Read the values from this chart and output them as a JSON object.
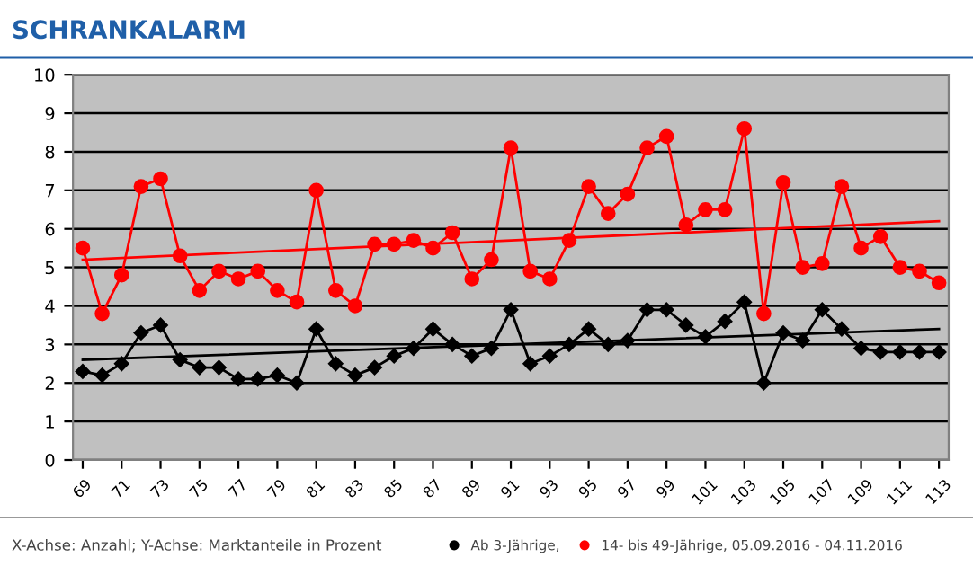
{
  "chart_data": {
    "type": "line",
    "title": "SCHRANKALARM",
    "x": [
      69,
      70,
      71,
      72,
      73,
      74,
      75,
      76,
      77,
      78,
      79,
      80,
      81,
      82,
      83,
      84,
      85,
      86,
      87,
      88,
      89,
      90,
      91,
      92,
      93,
      94,
      95,
      96,
      97,
      98,
      99,
      100,
      101,
      102,
      103,
      104,
      105,
      106,
      107,
      108,
      109,
      110,
      111,
      112,
      113
    ],
    "xlim": [
      68.5,
      113.5
    ],
    "xticks": [
      69,
      71,
      73,
      75,
      77,
      79,
      81,
      83,
      85,
      87,
      89,
      91,
      93,
      95,
      97,
      99,
      101,
      103,
      105,
      107,
      109,
      111,
      113
    ],
    "ylim": [
      0,
      10
    ],
    "yticks": [
      0,
      1,
      2,
      3,
      4,
      5,
      6,
      7,
      8,
      9,
      10
    ],
    "grid": "y",
    "legend": "bottom",
    "series": [
      {
        "name": "Ab 3-Jährige,",
        "color": "#000000",
        "marker": "diamond",
        "values": [
          2.3,
          2.2,
          2.5,
          3.3,
          3.5,
          2.6,
          2.4,
          2.4,
          2.1,
          2.1,
          2.2,
          2.0,
          3.4,
          2.5,
          2.2,
          2.4,
          2.7,
          2.9,
          3.4,
          3.0,
          2.7,
          2.9,
          3.9,
          2.5,
          2.7,
          3.0,
          3.4,
          3.0,
          3.1,
          3.9,
          3.9,
          3.5,
          3.2,
          3.6,
          4.1,
          2.0,
          3.3,
          3.1,
          3.9,
          3.4,
          2.9,
          2.8,
          2.8,
          2.8,
          2.8
        ]
      },
      {
        "name": "14- bis 49-Jährige, 05.09.2016 - 04.11.2016",
        "color": "#ff0000",
        "marker": "circle",
        "values": [
          5.5,
          3.8,
          4.8,
          7.1,
          7.3,
          5.3,
          4.4,
          4.9,
          4.7,
          4.9,
          4.4,
          4.1,
          7.0,
          4.4,
          4.0,
          5.6,
          5.6,
          5.7,
          5.5,
          5.9,
          4.7,
          5.2,
          8.1,
          4.9,
          4.7,
          5.7,
          7.1,
          6.4,
          6.9,
          8.1,
          8.4,
          6.1,
          6.5,
          6.5,
          8.6,
          3.8,
          7.2,
          5.0,
          5.1,
          7.1,
          5.5,
          5.8,
          5.0,
          4.9,
          4.6
        ]
      },
      {
        "type": "line",
        "color": "#000000",
        "marker": "none",
        "x": [
          69,
          91,
          113
        ],
        "values": [
          2.6,
          3.0,
          3.4
        ]
      },
      {
        "type": "line",
        "color": "#ff0000",
        "marker": "none",
        "x": [
          69,
          91,
          113
        ],
        "values": [
          5.2,
          5.7,
          6.2
        ]
      }
    ],
    "annotations": [
      "X-Achse: Anzahl; Y-Achse: Marktanteile in Prozent"
    ]
  }
}
